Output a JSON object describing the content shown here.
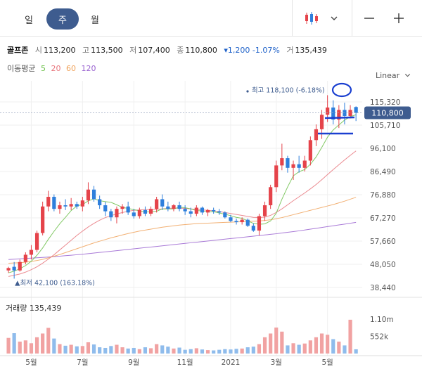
{
  "tabs": [
    {
      "label": "일",
      "active": false
    },
    {
      "label": "주",
      "active": true
    },
    {
      "label": "월",
      "active": false
    }
  ],
  "icons": {
    "chart_type": "candlestick-icon",
    "dropdown": "chevron-down-icon",
    "minus": "minus-icon",
    "plus": "plus-icon"
  },
  "stock": {
    "name": "골프존",
    "open_label": "시",
    "open": "113,200",
    "high_label": "고",
    "high": "113,500",
    "low_label": "저",
    "low": "107,400",
    "close_label": "종",
    "close": "110,800",
    "change": "▾1,200 -1.07%",
    "volume_label": "거",
    "volume": "135,439"
  },
  "moving_average": {
    "label": "이동평균",
    "periods": [
      {
        "label": "5",
        "color": "#6cc04a"
      },
      {
        "label": "20",
        "color": "#e8757c"
      },
      {
        "label": "60",
        "color": "#f0a25a"
      },
      {
        "label": "120",
        "color": "#9a63d0"
      }
    ]
  },
  "scale_label": "Linear",
  "colors": {
    "up": "#e5434a",
    "down": "#2e7fdc",
    "vol_up": "#f1a2a2",
    "vol_down": "#8fbcec",
    "accent": "#3e5c8f",
    "annotation": "#1a3fd0"
  },
  "chart_data": {
    "type": "candlestick",
    "price_axis_ticks": [
      "115,320",
      "105,710",
      "96,100",
      "86,490",
      "76,880",
      "67,270",
      "57,660",
      "48,050",
      "38,440"
    ],
    "price_axis_values": [
      115320,
      105710,
      96100,
      86490,
      76880,
      67270,
      57660,
      48050,
      38440
    ],
    "current_price_label": "110,800",
    "current_price": 110800,
    "max_label": "최고 118,100 (-6.18%)",
    "min_label": "최저 42,100 (163.18%)",
    "volume_title": "거래량",
    "volume_value": "135,439",
    "volume_axis_ticks": [
      "1.10m",
      "552k"
    ],
    "volume_axis_values": [
      1100000,
      552000
    ],
    "x_labels": [
      "5월",
      "7월",
      "9월",
      "11월",
      "2021",
      "3월",
      "5월"
    ],
    "x_label_index": [
      4,
      13,
      22,
      31,
      39,
      47,
      56
    ],
    "candles": [
      [
        45500,
        47000,
        44500,
        46500
      ],
      [
        47000,
        49000,
        42100,
        45500
      ],
      [
        45500,
        50000,
        45000,
        49000
      ],
      [
        49000,
        53000,
        48000,
        52000
      ],
      [
        52000,
        56000,
        50000,
        54000
      ],
      [
        54000,
        62000,
        53000,
        61000
      ],
      [
        61000,
        74000,
        60000,
        72000
      ],
      [
        72000,
        78500,
        70000,
        76000
      ],
      [
        76000,
        77000,
        70000,
        71000
      ],
      [
        71000,
        74000,
        69000,
        72500
      ],
      [
        72500,
        75000,
        70500,
        72000
      ],
      [
        72000,
        75500,
        70500,
        73000
      ],
      [
        73000,
        74000,
        71000,
        72000
      ],
      [
        72000,
        76000,
        70000,
        74500
      ],
      [
        74500,
        82000,
        73000,
        79000
      ],
      [
        79000,
        80500,
        74000,
        75000
      ],
      [
        75000,
        76500,
        71000,
        72500
      ],
      [
        72500,
        74000,
        68000,
        70000
      ],
      [
        70000,
        71000,
        66000,
        67500
      ],
      [
        67500,
        72000,
        65000,
        71000
      ],
      [
        71000,
        73000,
        69000,
        72000
      ],
      [
        72000,
        74000,
        68500,
        69500
      ],
      [
        69500,
        71000,
        67000,
        68000
      ],
      [
        68000,
        71500,
        67000,
        70500
      ],
      [
        70500,
        72000,
        68000,
        69000
      ],
      [
        69000,
        72000,
        68000,
        71000
      ],
      [
        71000,
        76000,
        69500,
        75000
      ],
      [
        75000,
        77000,
        70500,
        72000
      ],
      [
        72000,
        74000,
        70000,
        71000
      ],
      [
        71000,
        73000,
        70000,
        72500
      ],
      [
        72500,
        74000,
        70000,
        71000
      ],
      [
        71000,
        72500,
        68500,
        70000
      ],
      [
        70000,
        71500,
        67500,
        69000
      ],
      [
        69000,
        72500,
        68000,
        71500
      ],
      [
        71500,
        72000,
        68500,
        69500
      ],
      [
        69500,
        71000,
        68000,
        70500
      ],
      [
        70500,
        71500,
        69000,
        70000
      ],
      [
        70000,
        71000,
        68500,
        69500
      ],
      [
        69500,
        70000,
        67000,
        67500
      ],
      [
        67500,
        68500,
        65500,
        66000
      ],
      [
        66000,
        67000,
        64500,
        65500
      ],
      [
        65500,
        67500,
        64500,
        66500
      ],
      [
        66500,
        67000,
        63500,
        64000
      ],
      [
        64000,
        65000,
        61500,
        62000
      ],
      [
        62000,
        69000,
        60000,
        68000
      ],
      [
        68000,
        74000,
        66000,
        72500
      ],
      [
        72500,
        81000,
        71000,
        80000
      ],
      [
        80000,
        91000,
        78000,
        89000
      ],
      [
        89000,
        98000,
        87000,
        92000
      ],
      [
        92000,
        93000,
        86000,
        88000
      ],
      [
        88000,
        91000,
        83000,
        89500
      ],
      [
        89500,
        93000,
        86000,
        88000
      ],
      [
        88000,
        93000,
        86500,
        91000
      ],
      [
        91000,
        101000,
        89000,
        99500
      ],
      [
        99500,
        106000,
        97000,
        104000
      ],
      [
        104000,
        112000,
        100000,
        110000
      ],
      [
        110000,
        118100,
        107000,
        113000
      ],
      [
        113000,
        116000,
        106000,
        108000
      ],
      [
        108000,
        114000,
        104500,
        112000
      ],
      [
        112000,
        115000,
        106000,
        109500
      ],
      [
        109500,
        114000,
        108500,
        112000
      ],
      [
        113200,
        113500,
        107400,
        110800
      ]
    ],
    "volume": [
      500000,
      650000,
      380000,
      420000,
      330000,
      520000,
      640000,
      820000,
      480000,
      300000,
      250000,
      280000,
      230000,
      240000,
      360000,
      290000,
      200000,
      180000,
      240000,
      280000,
      200000,
      160000,
      180000,
      140000,
      200000,
      170000,
      300000,
      260000,
      220000,
      160000,
      190000,
      120000,
      140000,
      170000,
      130000,
      110000,
      100000,
      120000,
      140000,
      130000,
      150000,
      160000,
      200000,
      220000,
      300000,
      520000,
      640000,
      830000,
      700000,
      260000,
      330000,
      280000,
      320000,
      420000,
      520000,
      640000,
      600000,
      460000,
      380000,
      260000,
      1080000,
      135439
    ],
    "ma5": [
      44500,
      45200,
      46200,
      47500,
      49300,
      51800,
      54800,
      58400,
      61700,
      64800,
      67500,
      70300,
      72200,
      72800,
      74300,
      75200,
      74400,
      74000,
      73700,
      72700,
      71600,
      71200,
      70700,
      70200,
      69700,
      69800,
      70000,
      71000,
      71000,
      71000,
      71700,
      71500,
      71000,
      70300,
      70200,
      69800,
      69800,
      69300,
      68800,
      68200,
      67500,
      67100,
      66000,
      65000,
      64600,
      64800,
      66000,
      69200,
      75000,
      80100,
      84700,
      86400,
      87300,
      89500,
      92500,
      96500,
      100700,
      103700,
      105800,
      107800,
      109200,
      110000
    ],
    "ma20": [
      43000,
      43500,
      44000,
      44800,
      45800,
      47000,
      48500,
      50200,
      52000,
      54000,
      56000,
      58000,
      60000,
      61800,
      63500,
      65000,
      66300,
      67400,
      68200,
      68900,
      69500,
      70000,
      70400,
      70600,
      70700,
      70700,
      70800,
      71000,
      71200,
      71300,
      71300,
      71200,
      71000,
      70800,
      70600,
      70400,
      70200,
      69900,
      69500,
      69100,
      68700,
      68300,
      67900,
      67500,
      67400,
      67600,
      68300,
      69500,
      71000,
      72700,
      74400,
      76000,
      77600,
      79300,
      81100,
      83100,
      85200,
      87300,
      89300,
      91300,
      93200,
      95000
    ],
    "ma60": [
      48500,
      48600,
      48700,
      48900,
      49200,
      49600,
      50100,
      50700,
      51400,
      52100,
      52900,
      53700,
      54500,
      55300,
      56100,
      56900,
      57600,
      58300,
      59000,
      59600,
      60200,
      60800,
      61300,
      61800,
      62200,
      62600,
      63000,
      63400,
      63700,
      64000,
      64300,
      64500,
      64700,
      64900,
      65000,
      65100,
      65200,
      65300,
      65400,
      65500,
      65600,
      65700,
      65800,
      65900,
      66000,
      66200,
      66500,
      66900,
      67400,
      68000,
      68600,
      69200,
      69800,
      70400,
      71000,
      71600,
      72200,
      72800,
      73500,
      74200,
      75000,
      75800
    ],
    "ma120": [
      50000,
      50150,
      50300,
      50450,
      50600,
      50750,
      50900,
      51050,
      51200,
      51400,
      51600,
      51800,
      52000,
      52200,
      52450,
      52700,
      52950,
      53200,
      53450,
      53700,
      53950,
      54200,
      54450,
      54700,
      54950,
      55200,
      55450,
      55700,
      55950,
      56200,
      56450,
      56700,
      56950,
      57200,
      57450,
      57700,
      57950,
      58200,
      58450,
      58700,
      58950,
      59200,
      59450,
      59700,
      59950,
      60200,
      60450,
      60700,
      61000,
      61300,
      61600,
      61900,
      62250,
      62600,
      62950,
      63300,
      63650,
      64000,
      64350,
      64700,
      65050,
      65400
    ]
  }
}
